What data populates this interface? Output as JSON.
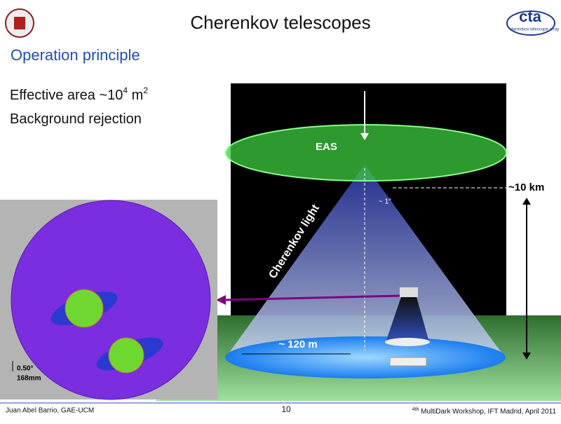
{
  "header": {
    "title": "Cherenkov telescopes",
    "logo_text": "cta",
    "logo_subtext": "cherenkov telescope array"
  },
  "section": "Operation principle",
  "bullets": [
    {
      "parts": [
        "Effective area ~10",
        "4",
        " m",
        "2"
      ]
    },
    {
      "parts": [
        "Background rejection"
      ]
    }
  ],
  "figure": {
    "eas": "EAS",
    "cherenkov_light": "Cherenkov light",
    "angle": "~ 1°",
    "height": "~10 km",
    "pool": "~ 120 m",
    "scale_angle": "0.50°",
    "scale_mm": "168mm"
  },
  "footer": {
    "author": "Juan Abel Barrio, GAE-UCM",
    "page": "10",
    "event": [
      "4",
      "th",
      " MultiDark Workshop, IFT Madrid, April 2011"
    ]
  }
}
